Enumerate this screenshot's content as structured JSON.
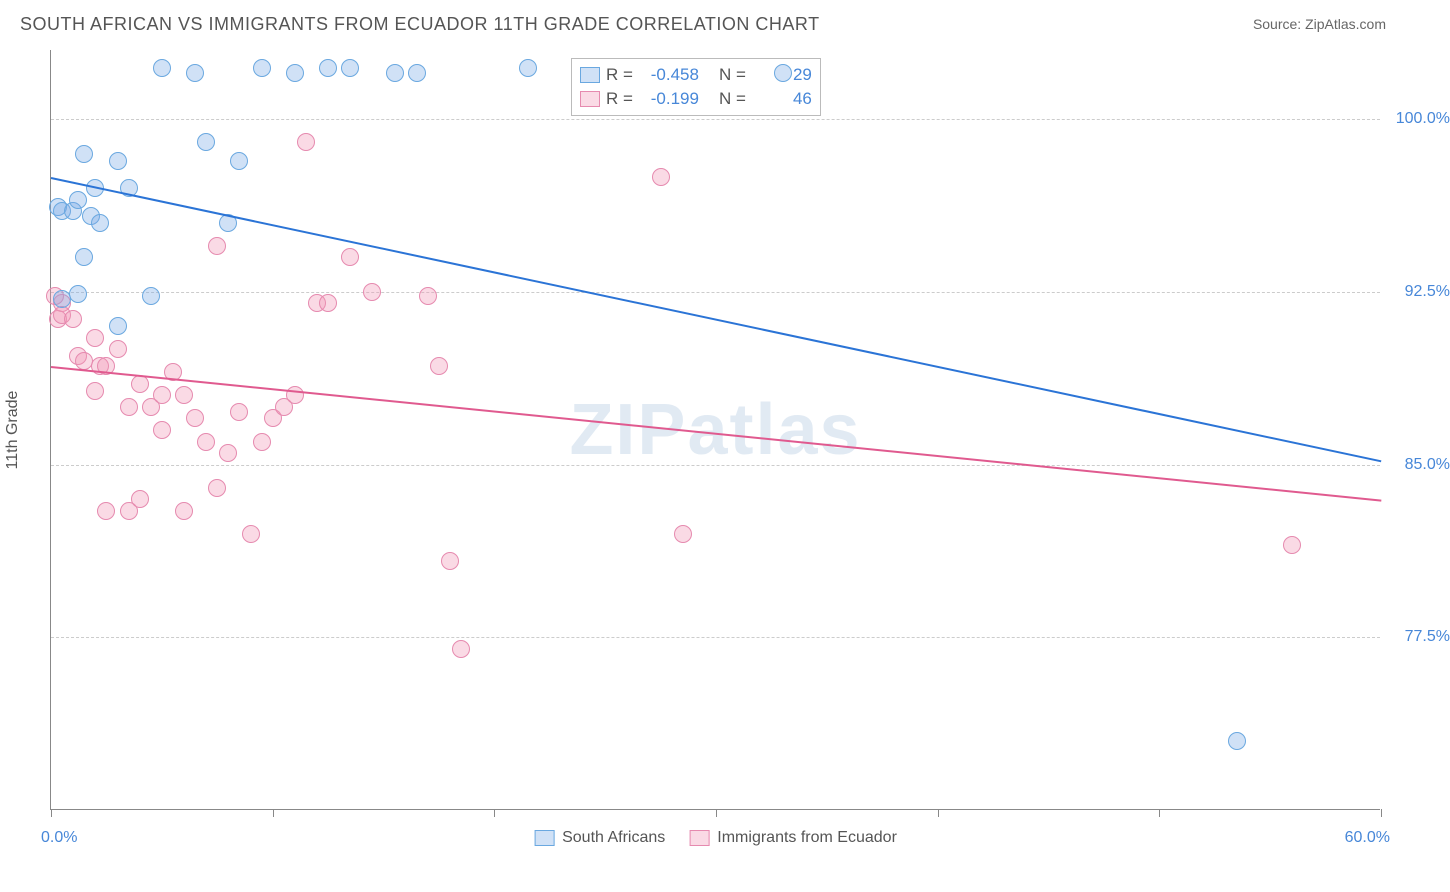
{
  "header": {
    "title": "SOUTH AFRICAN VS IMMIGRANTS FROM ECUADOR 11TH GRADE CORRELATION CHART",
    "source": "Source: ZipAtlas.com"
  },
  "watermark": "ZIPatlas",
  "chart": {
    "type": "scatter",
    "yaxis_title": "11th Grade",
    "xlim": [
      0,
      60
    ],
    "ylim": [
      70,
      103
    ],
    "x_label_min": "0.0%",
    "x_label_max": "60.0%",
    "xtick_positions": [
      0,
      10,
      20,
      30,
      40,
      50,
      60
    ],
    "yticks": [
      {
        "v": 77.5,
        "label": "77.5%"
      },
      {
        "v": 85.0,
        "label": "85.0%"
      },
      {
        "v": 92.5,
        "label": "92.5%"
      },
      {
        "v": 100.0,
        "label": "100.0%"
      }
    ],
    "grid_color": "#cccccc",
    "background_color": "#ffffff",
    "marker_radius": 9,
    "marker_border": 1.5,
    "series": {
      "sa": {
        "label": "South Africans",
        "fill": "rgba(120,170,230,0.35)",
        "stroke": "#6aa8e0",
        "R": "-0.458",
        "N": "29",
        "trend": {
          "x1": 0,
          "y1": 97.5,
          "x2": 60,
          "y2": 85.2,
          "color": "#2b74d6",
          "width": 2
        },
        "points": [
          [
            0.3,
            96.2
          ],
          [
            0.5,
            96.0
          ],
          [
            1.0,
            96.0
          ],
          [
            0.5,
            92.2
          ],
          [
            1.2,
            92.4
          ],
          [
            1.2,
            96.5
          ],
          [
            1.8,
            95.8
          ],
          [
            2.2,
            95.5
          ],
          [
            2.0,
            97.0
          ],
          [
            1.5,
            98.5
          ],
          [
            3.0,
            98.2
          ],
          [
            3.5,
            97.0
          ],
          [
            4.5,
            92.3
          ],
          [
            5.0,
            102.2
          ],
          [
            6.5,
            102.0
          ],
          [
            7.0,
            99.0
          ],
          [
            8.0,
            95.5
          ],
          [
            8.5,
            98.2
          ],
          [
            9.5,
            102.2
          ],
          [
            11.0,
            102.0
          ],
          [
            12.5,
            102.2
          ],
          [
            13.5,
            102.2
          ],
          [
            15.5,
            102.0
          ],
          [
            16.5,
            102.0
          ],
          [
            21.5,
            102.2
          ],
          [
            33.0,
            102.0
          ],
          [
            3.0,
            91.0
          ],
          [
            1.5,
            94.0
          ],
          [
            53.5,
            73.0
          ]
        ]
      },
      "ec": {
        "label": "Immigrants from Ecuador",
        "fill": "rgba(240,150,180,0.35)",
        "stroke": "#e68aaf",
        "R": "-0.199",
        "N": "46",
        "trend": {
          "x1": 0,
          "y1": 89.3,
          "x2": 60,
          "y2": 83.5,
          "color": "#e05a8f",
          "width": 2
        },
        "points": [
          [
            0.3,
            91.3
          ],
          [
            0.5,
            92.0
          ],
          [
            0.5,
            91.5
          ],
          [
            1.0,
            91.3
          ],
          [
            1.2,
            89.7
          ],
          [
            1.5,
            89.5
          ],
          [
            2.0,
            90.5
          ],
          [
            2.2,
            89.3
          ],
          [
            2.5,
            89.3
          ],
          [
            2.0,
            88.2
          ],
          [
            3.0,
            90.0
          ],
          [
            3.5,
            87.5
          ],
          [
            4.0,
            88.5
          ],
          [
            4.5,
            87.5
          ],
          [
            5.0,
            86.5
          ],
          [
            5.0,
            88.0
          ],
          [
            5.5,
            89.0
          ],
          [
            6.0,
            88.0
          ],
          [
            6.5,
            87.0
          ],
          [
            7.0,
            86.0
          ],
          [
            7.5,
            94.5
          ],
          [
            8.0,
            85.5
          ],
          [
            8.5,
            87.3
          ],
          [
            9.5,
            86.0
          ],
          [
            10.0,
            87.0
          ],
          [
            10.5,
            87.5
          ],
          [
            11.0,
            88.0
          ],
          [
            12.0,
            92.0
          ],
          [
            12.5,
            92.0
          ],
          [
            13.5,
            94.0
          ],
          [
            14.5,
            92.5
          ],
          [
            17.0,
            92.3
          ],
          [
            17.5,
            89.3
          ],
          [
            18.0,
            80.8
          ],
          [
            18.5,
            77.0
          ],
          [
            9.0,
            82.0
          ],
          [
            3.5,
            83.0
          ],
          [
            2.5,
            83.0
          ],
          [
            4.0,
            83.5
          ],
          [
            6.0,
            83.0
          ],
          [
            7.5,
            84.0
          ],
          [
            28.5,
            82.0
          ],
          [
            27.5,
            97.5
          ],
          [
            11.5,
            99.0
          ],
          [
            56.0,
            81.5
          ],
          [
            0.2,
            92.3
          ]
        ]
      }
    },
    "legend": {
      "stats_labels": {
        "R": "R =",
        "N": "N ="
      }
    }
  }
}
